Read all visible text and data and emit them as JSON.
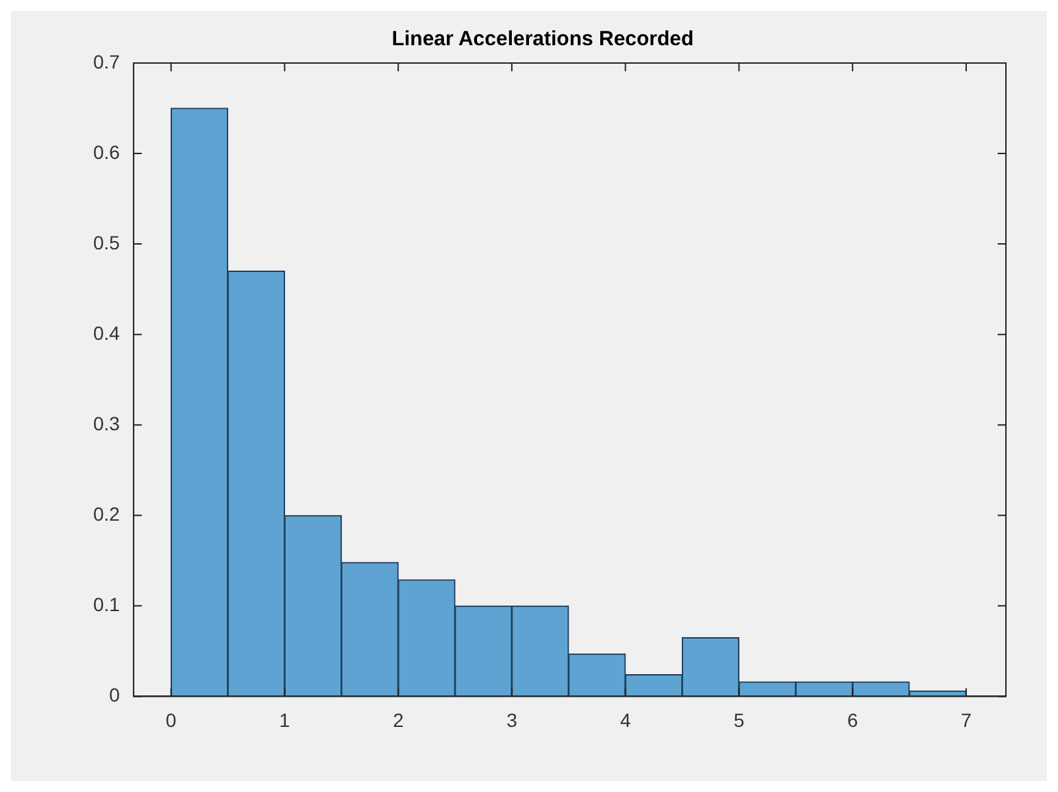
{
  "chart_data": {
    "type": "histogram",
    "title": "Linear Accelerations Recorded",
    "bins": [
      0,
      0.5,
      1,
      1.5,
      2,
      2.5,
      3,
      3.5,
      4,
      4.5,
      5,
      5.5,
      6,
      6.5,
      7
    ],
    "values": [
      0.65,
      0.47,
      0.2,
      0.148,
      0.129,
      0.1,
      0.1,
      0.047,
      0.024,
      0.065,
      0.016,
      0.016,
      0.016,
      0.006
    ],
    "color": "#5fa3d3",
    "xlim": [
      -0.33,
      7.35
    ],
    "xticks": [
      0,
      1,
      2,
      3,
      4,
      5,
      6,
      7
    ],
    "ylim": [
      0,
      0.7
    ],
    "yticks": [
      0,
      0.1,
      0.2,
      0.3,
      0.4,
      0.5,
      0.6,
      0.7
    ],
    "grid": false,
    "legend": false
  }
}
